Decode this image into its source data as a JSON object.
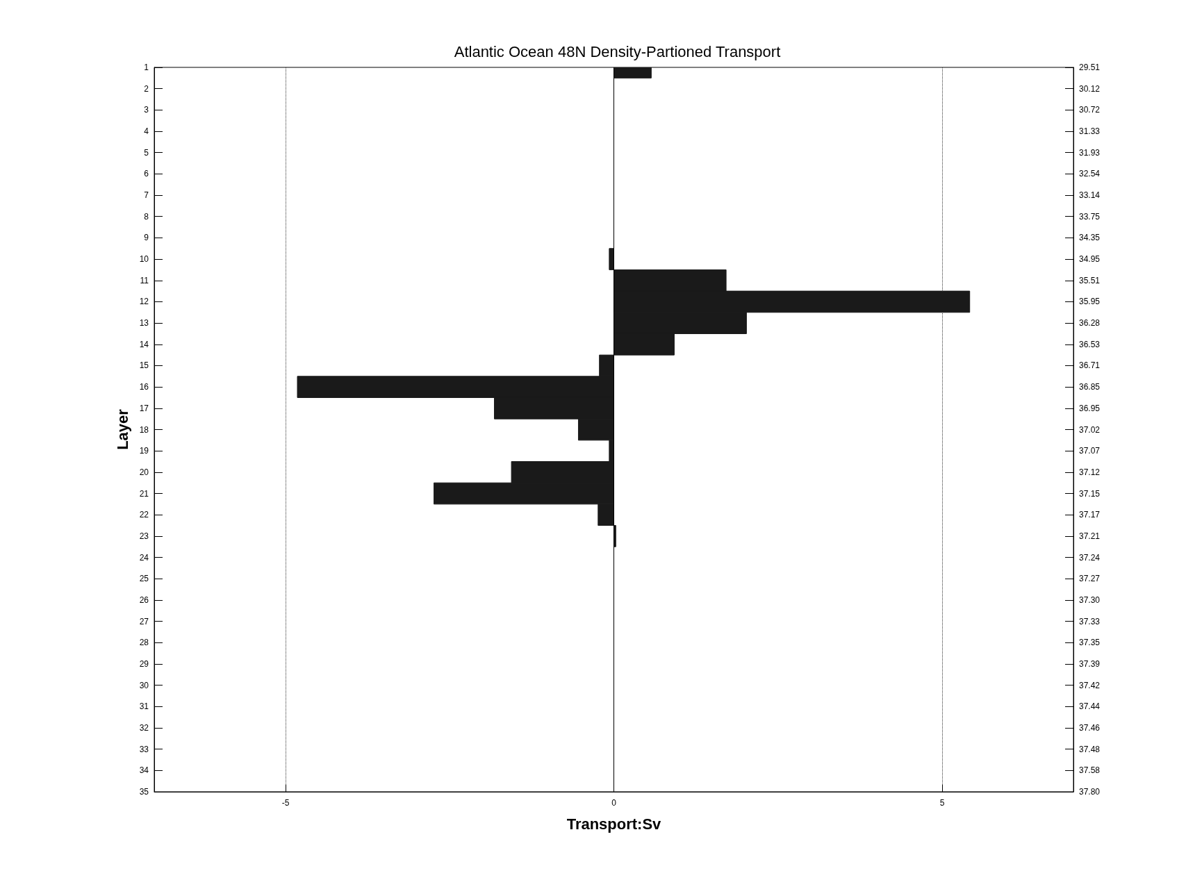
{
  "chart_data": {
    "type": "bar",
    "orientation": "horizontal",
    "title": "Atlantic Ocean 48N Density-Partioned Transport",
    "xlabel": "Transport:Sv",
    "ylabel": "Layer",
    "categories": [
      "1",
      "2",
      "3",
      "4",
      "5",
      "6",
      "7",
      "8",
      "9",
      "10",
      "11",
      "12",
      "13",
      "14",
      "15",
      "16",
      "17",
      "18",
      "19",
      "20",
      "21",
      "22",
      "23",
      "24",
      "25",
      "26",
      "27",
      "28",
      "29",
      "30",
      "31",
      "32",
      "33",
      "34",
      "35"
    ],
    "y2_categories": [
      "29.51",
      "30.12",
      "30.72",
      "31.33",
      "31.93",
      "32.54",
      "33.14",
      "33.75",
      "34.35",
      "34.95",
      "35.51",
      "35.95",
      "36.28",
      "36.53",
      "36.71",
      "36.85",
      "36.95",
      "37.02",
      "37.07",
      "37.12",
      "37.15",
      "37.17",
      "37.21",
      "37.24",
      "37.27",
      "37.30",
      "37.33",
      "37.35",
      "37.39",
      "37.42",
      "37.44",
      "37.46",
      "37.48",
      "37.58",
      "37.80"
    ],
    "values": [
      0.57,
      0,
      0,
      0,
      0,
      0,
      0,
      0,
      0,
      -0.07,
      1.71,
      5.42,
      2.02,
      0.92,
      -0.22,
      -4.82,
      -1.82,
      -0.54,
      -0.07,
      -1.56,
      -2.74,
      -0.24,
      0.03,
      0,
      0,
      0,
      0,
      0,
      0,
      0,
      0,
      0,
      0,
      0,
      0
    ],
    "color": "#1a1a1a",
    "xlim": [
      -7,
      7
    ],
    "xticks": [
      -5,
      0,
      5
    ],
    "grid": "x",
    "ref_lines": [
      {
        "axis": "x",
        "value": 0,
        "color": "#000000",
        "line_style": "solid"
      }
    ]
  }
}
